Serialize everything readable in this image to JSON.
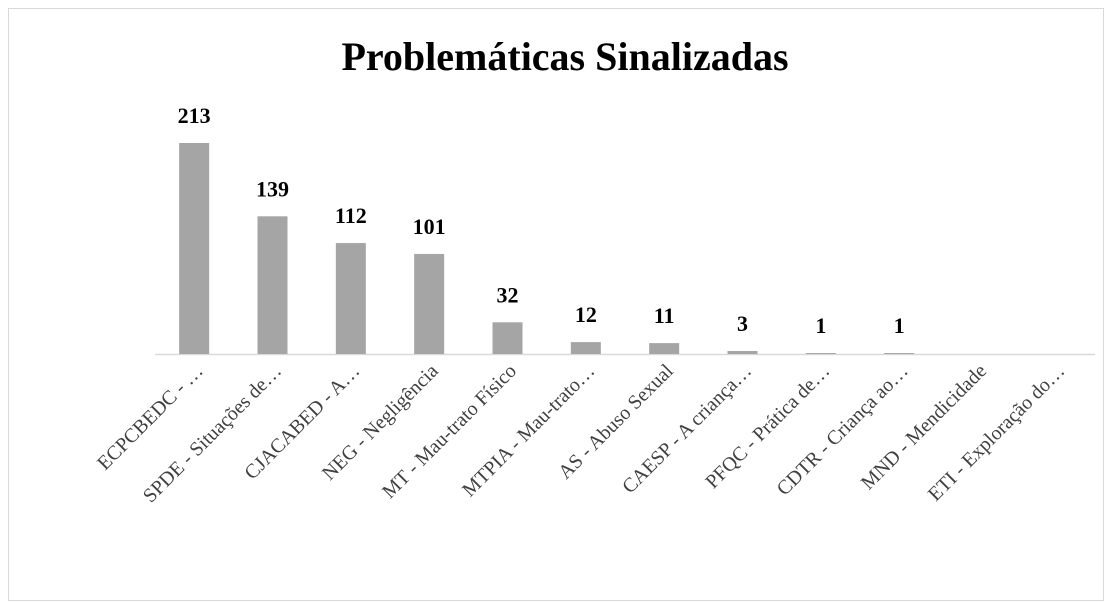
{
  "chart_data": {
    "type": "bar",
    "title": "Problemáticas Sinalizadas",
    "categories": [
      "ECPCBEDC - …",
      "SPDE - Situações de…",
      "CJACABED - A…",
      "NEG - Negligência",
      "MT - Mau-trato Físico",
      "MTPIA - Mau-trato…",
      "AS - Abuso Sexual",
      "CAESP - A criança…",
      "PFQC - Prática de…",
      "CDTR - Criança ao…",
      "MND - Mendicidade",
      "ETI - Exploração do…"
    ],
    "values": [
      213,
      139,
      112,
      101,
      32,
      12,
      11,
      3,
      1,
      1,
      null,
      null
    ],
    "color": "#a5a5a5"
  }
}
